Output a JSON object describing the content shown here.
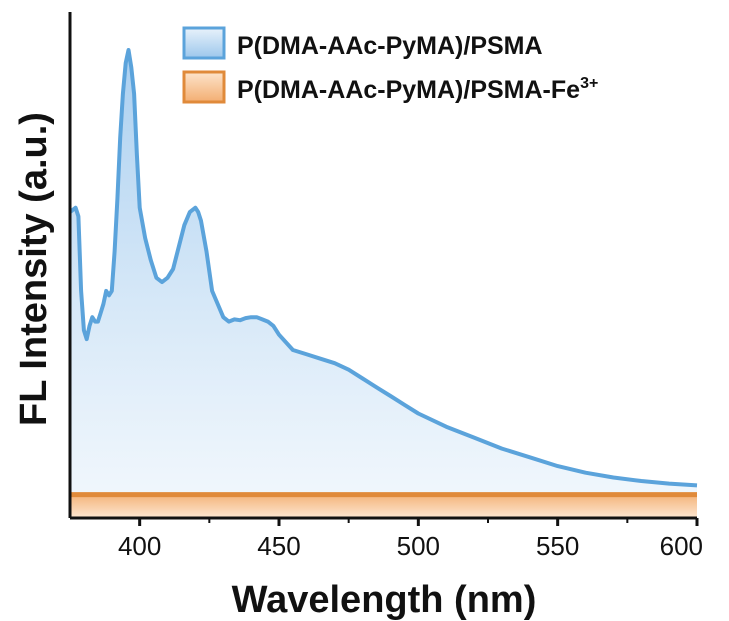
{
  "chart_data": {
    "type": "area",
    "xlabel": "Wavelength (nm)",
    "ylabel": "FL Intensity (a.u.)",
    "xlim": [
      375,
      600
    ],
    "ylim": [
      0,
      100
    ],
    "xticks": [
      400,
      450,
      500,
      550,
      600
    ],
    "yticks_shown": false,
    "grid": false,
    "legend_position": "top-right",
    "series": [
      {
        "name": "P(DMA-AAc-PyMA)/PSMA",
        "color": "#5BA3DB",
        "x": [
          375,
          377,
          378,
          379,
          380,
          381,
          382,
          383,
          384,
          385,
          386,
          387,
          388,
          389,
          390,
          391,
          392,
          393,
          394,
          395,
          396,
          397,
          398,
          399,
          400,
          402,
          404,
          406,
          408,
          410,
          412,
          414,
          416,
          418,
          420,
          421,
          422,
          424,
          426,
          428,
          430,
          432,
          434,
          436,
          438,
          440,
          442,
          444,
          446,
          448,
          450,
          455,
          460,
          465,
          470,
          475,
          480,
          485,
          490,
          495,
          500,
          510,
          520,
          530,
          540,
          550,
          560,
          570,
          580,
          590,
          600
        ],
        "y": [
          63,
          64,
          62,
          45,
          36,
          34,
          37,
          39,
          38,
          38,
          40,
          42,
          45,
          44,
          45,
          54,
          66,
          80,
          90,
          97,
          100,
          96,
          90,
          76,
          64,
          57,
          52,
          48,
          47,
          48,
          50,
          55,
          60,
          63,
          64,
          63,
          61,
          54,
          45,
          42,
          39,
          38,
          38.5,
          38.3,
          38.8,
          39,
          39,
          38.5,
          38,
          37,
          35,
          31.5,
          30.5,
          29.5,
          28.5,
          27,
          25,
          23,
          21,
          19,
          17,
          14,
          11.5,
          9,
          7,
          5,
          3.5,
          2.4,
          1.6,
          1,
          0.6
        ]
      },
      {
        "name": "P(DMA-AAc-PyMA)/PSMA-Fe³⁺",
        "color": "#E08A3A",
        "x": [
          375,
          600
        ],
        "y": [
          -1.5,
          -1.5
        ]
      }
    ]
  },
  "legend": {
    "items": [
      {
        "label": "P(DMA-AAc-PyMA)/PSMA"
      },
      {
        "label": "P(DMA-AAc-PyMA)/PSMA-Fe",
        "sup": "3+"
      }
    ]
  }
}
